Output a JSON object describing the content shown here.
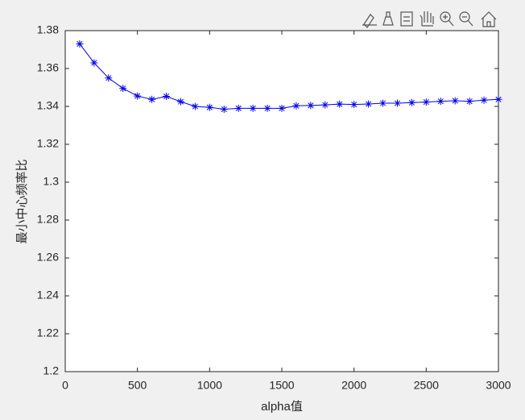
{
  "chart_data": {
    "type": "line",
    "x_label": "alpha值",
    "y_label": "最小中心频率比",
    "x": [
      100,
      200,
      300,
      400,
      500,
      600,
      700,
      800,
      900,
      1000,
      1100,
      1200,
      1300,
      1400,
      1500,
      1600,
      1700,
      1800,
      1900,
      2000,
      2100,
      2200,
      2300,
      2400,
      2500,
      2600,
      2700,
      2800,
      2900,
      3000
    ],
    "series": [
      {
        "color": "#0000ff",
        "marker": "asterisk",
        "values": [
          1.373,
          1.363,
          1.355,
          1.3495,
          1.3455,
          1.3437,
          1.3453,
          1.3425,
          1.34,
          1.3395,
          1.3385,
          1.339,
          1.339,
          1.339,
          1.339,
          1.3403,
          1.3405,
          1.3408,
          1.3412,
          1.341,
          1.3413,
          1.3417,
          1.3417,
          1.342,
          1.3423,
          1.3427,
          1.343,
          1.3427,
          1.3433,
          1.3437
        ]
      }
    ],
    "xlim": [
      0,
      3000
    ],
    "xticks": [
      0,
      500,
      1000,
      1500,
      2000,
      2500,
      3000
    ],
    "ylim": [
      1.2,
      1.38
    ],
    "yticks": [
      1.2,
      1.22,
      1.24,
      1.26,
      1.28,
      1.3,
      1.32,
      1.34,
      1.36,
      1.38
    ]
  }
}
